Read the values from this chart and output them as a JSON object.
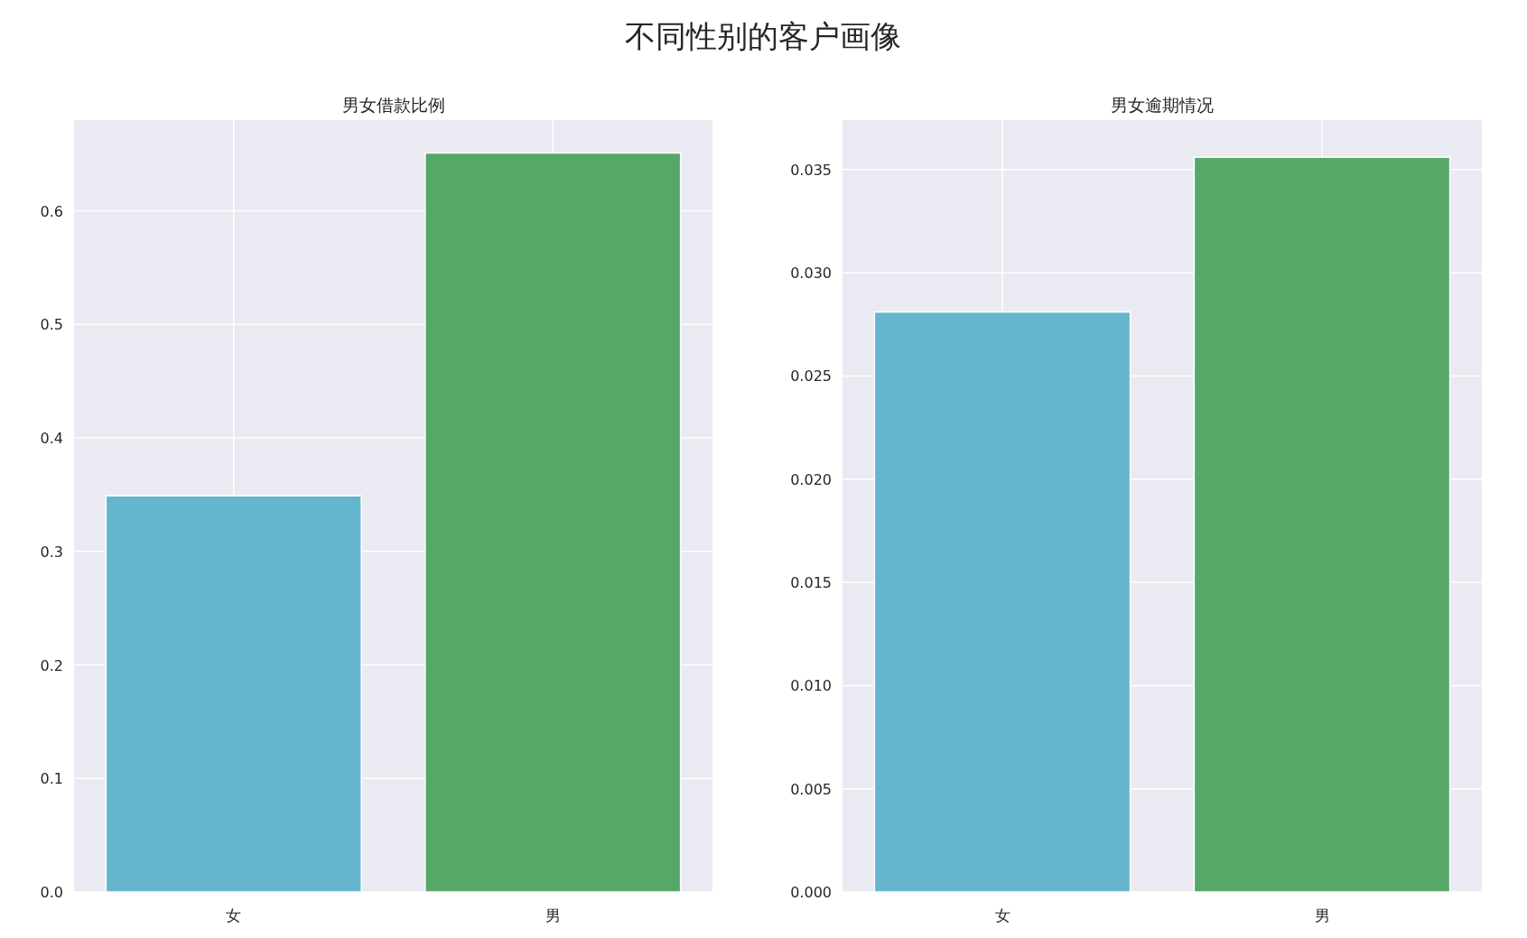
{
  "chart_data": [
    {
      "type": "bar",
      "title": "不同性别的客户画像",
      "subtitle": "男女借款比例",
      "categories": [
        "女",
        "男"
      ],
      "values": [
        0.349,
        0.651
      ],
      "colors": [
        "#64b5cd",
        "#55a868"
      ],
      "ylim": [
        0,
        0.68
      ],
      "yticks": [
        {
          "value": 0,
          "label": "0.0"
        },
        0.1,
        0.2,
        0.3,
        0.4,
        0.5,
        0.6
      ],
      "grid": true
    },
    {
      "type": "bar",
      "subtitle": "男女逾期情况",
      "categories": [
        "女",
        "男"
      ],
      "values": [
        0.0281,
        0.0356
      ],
      "colors": [
        "#64b5cd",
        "#55a868"
      ],
      "ylim": [
        0,
        0.0374
      ],
      "yticks": [
        {
          "value": 0,
          "label": "0.000"
        },
        {
          "value": 0.005,
          "label": "0.005"
        },
        {
          "value": 0.01,
          "label": "0.010"
        },
        {
          "value": 0.015,
          "label": "0.015"
        },
        {
          "value": 0.02,
          "label": "0.020"
        },
        {
          "value": 0.025,
          "label": "0.025"
        },
        {
          "value": 0.03,
          "label": "0.030"
        },
        {
          "value": 0.035,
          "label": "0.035"
        }
      ],
      "grid": true
    }
  ]
}
